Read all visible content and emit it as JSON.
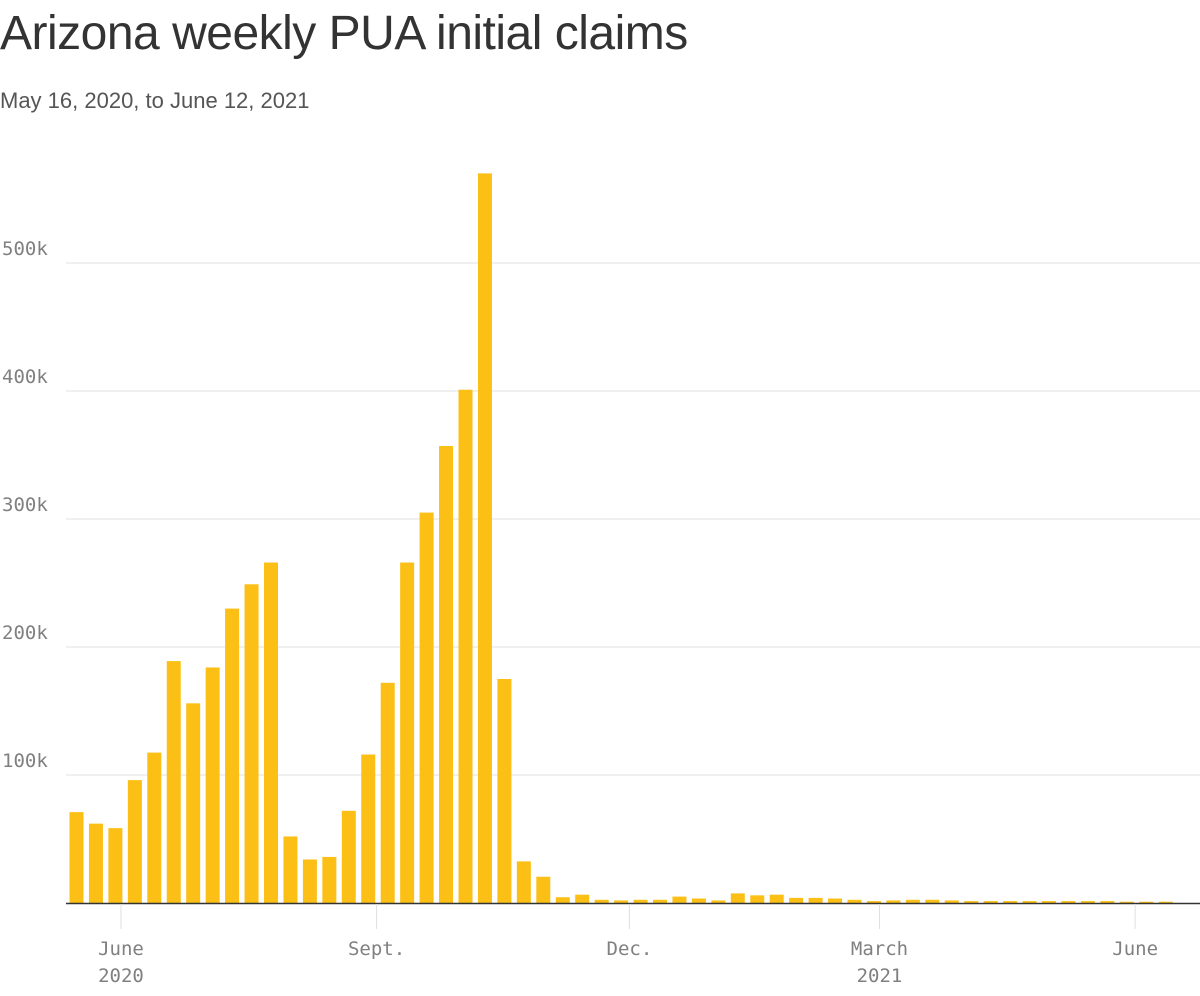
{
  "title": "Arizona weekly PUA initial claims",
  "subtitle": "May 16, 2020, to June 12, 2021",
  "colors": {
    "bar": "#fbbf16",
    "grid": "#e0e0e0",
    "axis": "#333333",
    "text": "#808080"
  },
  "chart_data": {
    "type": "bar",
    "title": "Arizona weekly PUA initial claims",
    "subtitle": "May 16, 2020, to June 12, 2021",
    "xlabel": "",
    "ylabel": "",
    "ylim": [
      0,
      580000
    ],
    "yticks": [
      100000,
      200000,
      300000,
      400000,
      500000
    ],
    "ytick_labels": [
      "100k",
      "200k",
      "300k",
      "400k",
      "500k"
    ],
    "xticks": [
      {
        "date": "2020-06-01",
        "label": "June",
        "sublabel": "2020"
      },
      {
        "date": "2020-09-01",
        "label": "Sept.",
        "sublabel": ""
      },
      {
        "date": "2020-12-01",
        "label": "Dec.",
        "sublabel": ""
      },
      {
        "date": "2021-03-01",
        "label": "March",
        "sublabel": "2021"
      },
      {
        "date": "2021-06-01",
        "label": "June",
        "sublabel": ""
      }
    ],
    "grid": true,
    "x": [
      "2020-05-16",
      "2020-05-23",
      "2020-05-30",
      "2020-06-06",
      "2020-06-13",
      "2020-06-20",
      "2020-06-27",
      "2020-07-04",
      "2020-07-11",
      "2020-07-18",
      "2020-07-25",
      "2020-08-01",
      "2020-08-08",
      "2020-08-15",
      "2020-08-22",
      "2020-08-29",
      "2020-09-05",
      "2020-09-12",
      "2020-09-19",
      "2020-09-26",
      "2020-10-03",
      "2020-10-10",
      "2020-10-17",
      "2020-10-24",
      "2020-10-31",
      "2020-11-07",
      "2020-11-14",
      "2020-11-21",
      "2020-11-28",
      "2020-12-05",
      "2020-12-12",
      "2020-12-19",
      "2020-12-26",
      "2021-01-02",
      "2021-01-09",
      "2021-01-16",
      "2021-01-23",
      "2021-01-30",
      "2021-02-06",
      "2021-02-13",
      "2021-02-20",
      "2021-02-27",
      "2021-03-06",
      "2021-03-13",
      "2021-03-20",
      "2021-03-27",
      "2021-04-03",
      "2021-04-10",
      "2021-04-17",
      "2021-04-24",
      "2021-05-01",
      "2021-05-08",
      "2021-05-15",
      "2021-05-22",
      "2021-05-29",
      "2021-06-05",
      "2021-06-12"
    ],
    "values": [
      71000,
      62000,
      58500,
      96000,
      117500,
      189000,
      156000,
      184000,
      230000,
      249000,
      266000,
      52000,
      34000,
      36000,
      72000,
      116000,
      172000,
      266000,
      305000,
      357000,
      401000,
      570000,
      175000,
      32500,
      20500,
      4500,
      6500,
      2500,
      2000,
      2500,
      2500,
      5000,
      3500,
      2000,
      7500,
      6000,
      6500,
      4000,
      4000,
      3500,
      2500,
      1500,
      2000,
      2500,
      2500,
      2000,
      1500,
      1500,
      1500,
      1500,
      1500,
      1500,
      1500,
      1500,
      1000,
      1000,
      1000
    ]
  }
}
